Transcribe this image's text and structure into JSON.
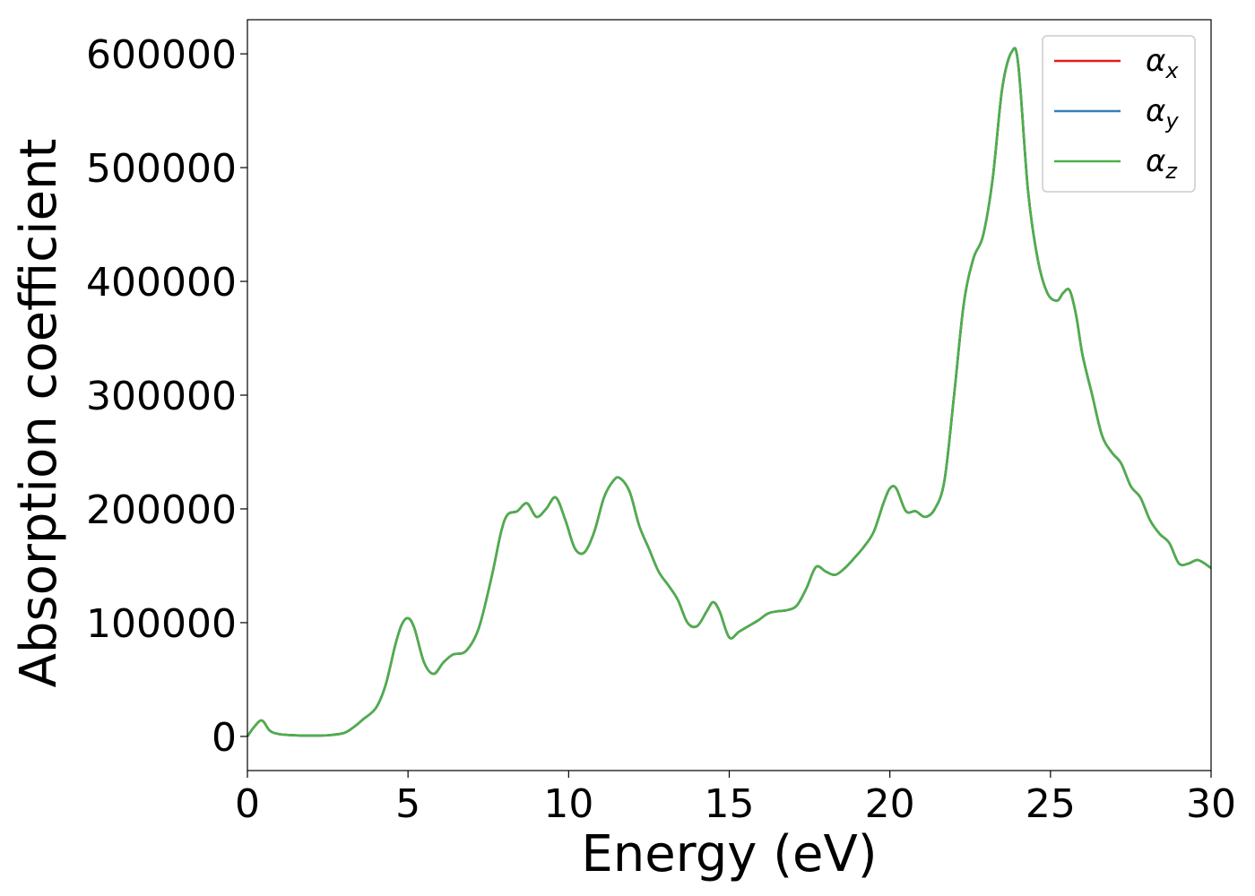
{
  "chart_data": {
    "type": "line",
    "title": "",
    "xlabel": "Energy (eV)",
    "ylabel": "Absorption coefficient",
    "xlim": [
      0,
      30
    ],
    "ylim": [
      -30000,
      630000
    ],
    "xticks": [
      0,
      5,
      10,
      15,
      20,
      25,
      30
    ],
    "yticks": [
      0,
      100000,
      200000,
      300000,
      400000,
      500000,
      600000
    ],
    "grid": false,
    "legend_position": "top-right",
    "series": [
      {
        "name": "α",
        "subscript": "x",
        "color": "#e41a1c"
      },
      {
        "name": "α",
        "subscript": "y",
        "color": "#377eb8"
      },
      {
        "name": "α",
        "subscript": "z",
        "color": "#4daf4a"
      }
    ],
    "x": [
      0,
      0.2,
      0.45,
      0.7,
      1.0,
      1.5,
      2.0,
      2.5,
      3.0,
      3.3,
      3.6,
      4.0,
      4.3,
      4.6,
      4.8,
      5.0,
      5.2,
      5.5,
      5.8,
      6.1,
      6.4,
      6.8,
      7.2,
      7.6,
      7.9,
      8.1,
      8.4,
      8.7,
      9.0,
      9.3,
      9.6,
      9.9,
      10.2,
      10.5,
      10.8,
      11.1,
      11.4,
      11.6,
      11.9,
      12.2,
      12.5,
      12.8,
      13.1,
      13.4,
      13.7,
      14.0,
      14.3,
      14.5,
      14.7,
      15.0,
      15.3,
      15.6,
      15.9,
      16.2,
      16.5,
      16.8,
      17.1,
      17.4,
      17.7,
      18.0,
      18.3,
      18.6,
      18.9,
      19.2,
      19.5,
      19.8,
      20.0,
      20.2,
      20.5,
      20.8,
      21.1,
      21.4,
      21.7,
      22.0,
      22.3,
      22.6,
      22.9,
      23.2,
      23.5,
      23.8,
      24.0,
      24.3,
      24.6,
      24.9,
      25.2,
      25.4,
      25.6,
      25.8,
      26.0,
      26.3,
      26.6,
      26.9,
      27.2,
      27.5,
      27.8,
      28.1,
      28.4,
      28.7,
      29.0,
      29.3,
      29.6,
      30.0
    ],
    "values": [
      0,
      8000,
      14000,
      5000,
      2000,
      1000,
      800,
      1000,
      3000,
      8000,
      15000,
      25000,
      45000,
      80000,
      98000,
      104000,
      95000,
      65000,
      55000,
      65000,
      72000,
      75000,
      95000,
      140000,
      180000,
      195000,
      198000,
      205000,
      193000,
      200000,
      210000,
      190000,
      165000,
      162000,
      180000,
      210000,
      225000,
      227000,
      215000,
      185000,
      165000,
      145000,
      133000,
      120000,
      100000,
      97000,
      110000,
      118000,
      110000,
      87000,
      92000,
      97000,
      102000,
      108000,
      110000,
      111000,
      115000,
      130000,
      149000,
      145000,
      142000,
      148000,
      157000,
      167000,
      180000,
      205000,
      218000,
      218000,
      198000,
      198000,
      193000,
      200000,
      225000,
      300000,
      380000,
      420000,
      440000,
      490000,
      570000,
      602000,
      590000,
      480000,
      420000,
      390000,
      383000,
      390000,
      392000,
      370000,
      335000,
      300000,
      265000,
      250000,
      240000,
      220000,
      210000,
      190000,
      178000,
      170000,
      152000,
      152000,
      155000,
      148000
    ]
  }
}
